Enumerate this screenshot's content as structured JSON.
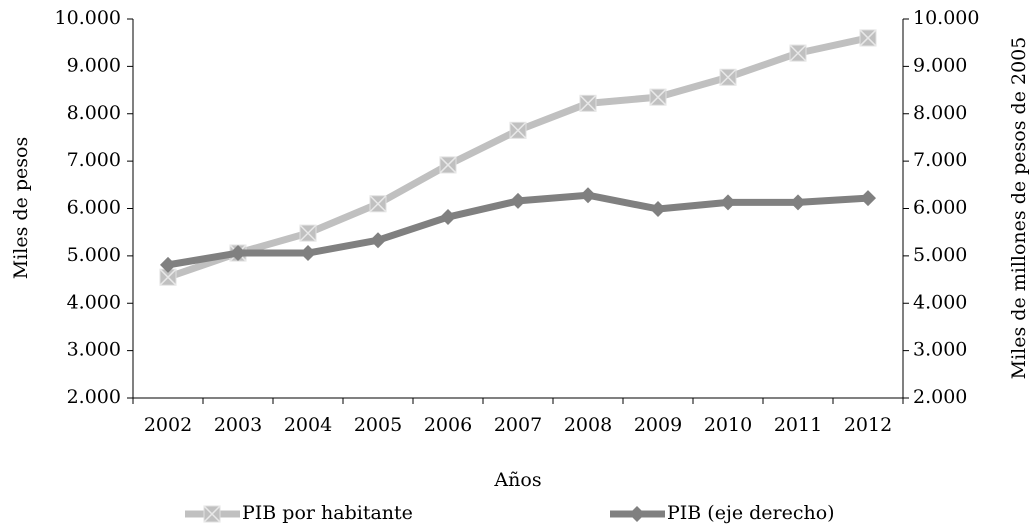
{
  "chart_data": {
    "type": "line",
    "categories": [
      "2002",
      "2003",
      "2004",
      "2005",
      "2006",
      "2007",
      "2008",
      "2009",
      "2010",
      "2011",
      "2012"
    ],
    "series": [
      {
        "name": "PIB por habitante",
        "color": "#c0c0c0",
        "values": [
          4550,
          5060,
          5480,
          6100,
          6920,
          7650,
          8220,
          8350,
          8770,
          9280,
          9600
        ]
      },
      {
        "name": "PIB (eje derecho)",
        "color": "#808080",
        "axis": "y2",
        "values": [
          4810,
          5060,
          5060,
          5330,
          5820,
          6160,
          6280,
          5990,
          6130,
          6130,
          6220
        ]
      }
    ],
    "xlabel": "Años",
    "ylabel": "Miles de pesos",
    "y2label": "Miles de millones de pesos de 2005",
    "ylim": [
      2000,
      10000
    ],
    "yticks": [
      {
        "value": 2000,
        "label": "2.000"
      },
      {
        "value": 3000,
        "label": "3.000"
      },
      {
        "value": 4000,
        "label": "4.000"
      },
      {
        "value": 5000,
        "label": "5.000"
      },
      {
        "value": 6000,
        "label": "6.000"
      },
      {
        "value": 7000,
        "label": "7.000"
      },
      {
        "value": 8000,
        "label": "8.000"
      },
      {
        "value": 9000,
        "label": "9.000"
      },
      {
        "value": 10000,
        "label": "10.000"
      }
    ],
    "y2lim": [
      2000,
      10000
    ],
    "y2ticks": [
      {
        "value": 2000,
        "label": "2.000"
      },
      {
        "value": 3000,
        "label": "3.000"
      },
      {
        "value": 4000,
        "label": "4.000"
      },
      {
        "value": 5000,
        "label": "5.000"
      },
      {
        "value": 6000,
        "label": "6.000"
      },
      {
        "value": 7000,
        "label": "7.000"
      },
      {
        "value": 8000,
        "label": "8.000"
      },
      {
        "value": 9000,
        "label": "9.000"
      },
      {
        "value": 10000,
        "label": "10.000"
      }
    ],
    "legend": "bottom"
  }
}
